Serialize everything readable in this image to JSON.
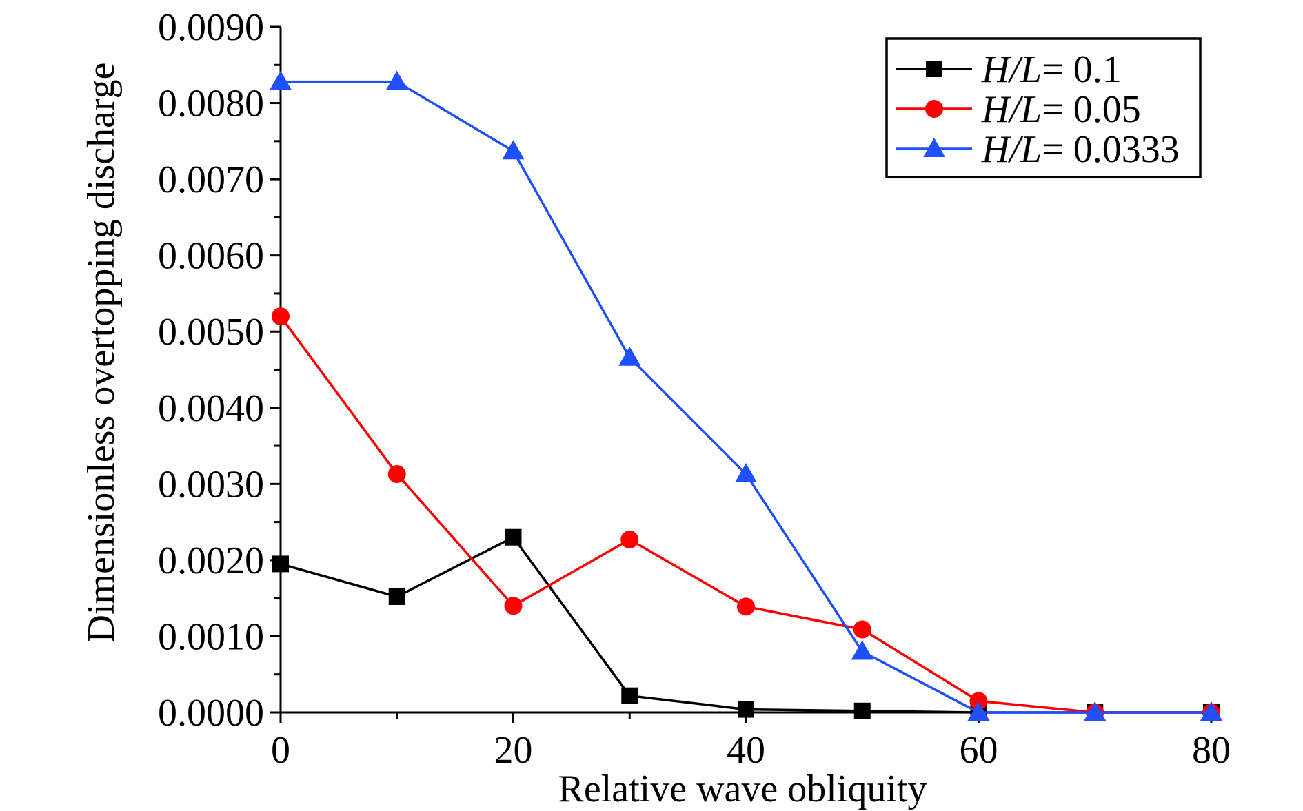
{
  "chart_data": {
    "type": "line",
    "title": "",
    "xlabel": "Relative wave obliquity",
    "ylabel": "Dimensionless overtopping discharge",
    "xlim": [
      0,
      80
    ],
    "ylim": [
      0,
      0.009
    ],
    "xticks": [
      0,
      20,
      40,
      60,
      80
    ],
    "yticks": [
      0,
      0.001,
      0.002,
      0.003,
      0.004,
      0.005,
      0.006,
      0.007,
      0.008,
      0.009
    ],
    "xtick_labels": [
      "0",
      "20",
      "40",
      "60",
      "80"
    ],
    "ytick_labels": [
      "0.0000",
      "0.0010",
      "0.0020",
      "0.0030",
      "0.0040",
      "0.0050",
      "0.0060",
      "0.0070",
      "0.0080",
      "0.0090"
    ],
    "grid": false,
    "legend_position": "top-right",
    "x": [
      0,
      10,
      20,
      30,
      40,
      50,
      60,
      70,
      80
    ],
    "series": [
      {
        "name": "H/L= 0.1",
        "name_italic": "H/L",
        "name_rest": "= 0.1",
        "color": "#000000",
        "marker": "square",
        "values": [
          0.00195,
          0.00152,
          0.0023,
          0.00022,
          4e-05,
          2e-05,
          0.0,
          0.0,
          0.0
        ]
      },
      {
        "name": "H/L= 0.05",
        "name_italic": "H/L",
        "name_rest": "= 0.05",
        "color": "#ff0000",
        "marker": "circle",
        "values": [
          0.0052,
          0.00313,
          0.0014,
          0.00227,
          0.00139,
          0.00109,
          0.00015,
          0.0,
          0.0
        ]
      },
      {
        "name": "H/L= 0.0333",
        "name_italic": "H/L",
        "name_rest": "= 0.0333",
        "color": "#1f4fff",
        "marker": "triangle",
        "values": [
          0.00828,
          0.00828,
          0.00737,
          0.00466,
          0.00313,
          0.0008,
          0.0,
          0.0,
          0.0
        ]
      }
    ]
  }
}
